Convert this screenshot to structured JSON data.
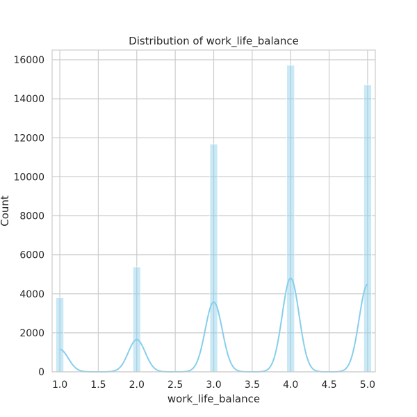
{
  "chart_data": {
    "type": "bar",
    "title": "Distribution of work_life_balance",
    "xlabel": "work_life_balance",
    "ylabel": "Count",
    "xlim": [
      0.9,
      5.1
    ],
    "ylim": [
      0,
      16500
    ],
    "x_ticks": [
      1.0,
      1.5,
      2.0,
      2.5,
      3.0,
      3.5,
      4.0,
      4.5,
      5.0
    ],
    "x_tick_labels": [
      "1.0",
      "1.5",
      "2.0",
      "2.5",
      "3.0",
      "3.5",
      "4.0",
      "4.5",
      "5.0"
    ],
    "y_ticks": [
      0,
      2000,
      4000,
      6000,
      8000,
      10000,
      12000,
      14000,
      16000
    ],
    "y_tick_labels": [
      "0",
      "2000",
      "4000",
      "6000",
      "8000",
      "10000",
      "12000",
      "14000",
      "16000"
    ],
    "grid": true,
    "bar_color": "#87ceeb",
    "kde_color": "#87ceeb",
    "bin_width": 0.1,
    "bars": [
      {
        "x": 1.0,
        "value": 3800
      },
      {
        "x": 2.0,
        "value": 5380
      },
      {
        "x": 3.0,
        "value": 11680
      },
      {
        "x": 4.0,
        "value": 15720
      },
      {
        "x": 5.0,
        "value": 14720
      }
    ],
    "kde_peaks": [
      {
        "x": 1.0,
        "value": 1150
      },
      {
        "x": 2.0,
        "value": 1650
      },
      {
        "x": 3.0,
        "value": 3580
      },
      {
        "x": 4.0,
        "value": 4800
      },
      {
        "x": 5.0,
        "value": 4480
      }
    ],
    "kde_bandwidth": 0.11
  }
}
